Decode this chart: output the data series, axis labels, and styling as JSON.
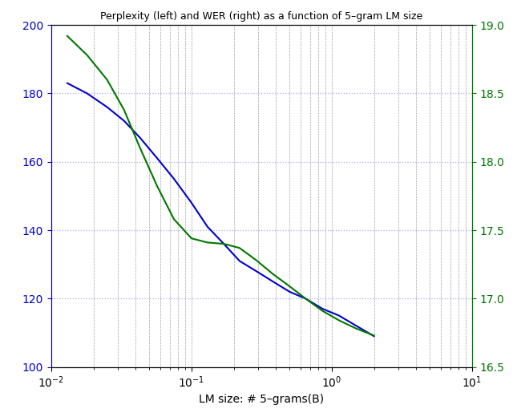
{
  "title": "Perplexity (left) and WER (right) as a function of 5–gram LM size",
  "xlabel": "LM size: # 5–grams(B)",
  "xlim": [
    0.01,
    10
  ],
  "ylim_left": [
    100,
    200
  ],
  "ylim_right": [
    16.5,
    19
  ],
  "yticks_left": [
    100,
    120,
    140,
    160,
    180,
    200
  ],
  "yticks_right": [
    16.5,
    17.0,
    17.5,
    18.0,
    18.5,
    19.0
  ],
  "blue_color": "#0000cc",
  "green_color": "#007700",
  "hgrid_color": "#aaaaff",
  "vgrid_color": "#555555",
  "blue_x": [
    0.013,
    0.018,
    0.025,
    0.033,
    0.043,
    0.057,
    0.075,
    0.1,
    0.13,
    0.17,
    0.22,
    0.29,
    0.38,
    0.5,
    0.65,
    0.86,
    1.13,
    1.5,
    2.0
  ],
  "blue_y": [
    183,
    180,
    176,
    172,
    167,
    161,
    155,
    148,
    141,
    136,
    131,
    128,
    125,
    122,
    120,
    117,
    115,
    112,
    109
  ],
  "green_x": [
    0.013,
    0.018,
    0.025,
    0.033,
    0.043,
    0.057,
    0.075,
    0.1,
    0.13,
    0.17,
    0.22,
    0.29,
    0.38,
    0.5,
    0.65,
    0.86,
    1.13,
    1.5,
    2.0
  ],
  "green_y": [
    18.92,
    18.78,
    18.6,
    18.38,
    18.1,
    17.82,
    17.58,
    17.44,
    17.41,
    17.4,
    17.37,
    17.28,
    17.18,
    17.09,
    17.0,
    16.91,
    16.84,
    16.78,
    16.73
  ],
  "figsize": [
    6.4,
    5.2
  ],
  "dpi": 100,
  "title_fontsize": 9,
  "label_fontsize": 10,
  "tick_fontsize": 10
}
